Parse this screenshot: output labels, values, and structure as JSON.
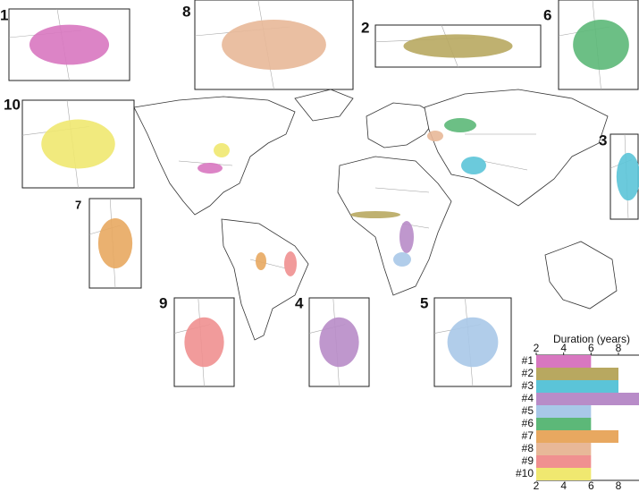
{
  "insets": [
    {
      "label": "1",
      "color": "#d877c0"
    },
    {
      "label": "2",
      "color": "#b8a860"
    },
    {
      "label": "3",
      "color": "#5bc4d8"
    },
    {
      "label": "4",
      "color": "#b88cc8"
    },
    {
      "label": "5",
      "color": "#a8c8e8"
    },
    {
      "label": "6",
      "color": "#5cb878"
    },
    {
      "label": "7",
      "color": "#e8a860"
    },
    {
      "label": "8",
      "color": "#e8b898"
    },
    {
      "label": "9",
      "color": "#f09090"
    },
    {
      "label": "10",
      "color": "#f0e870"
    }
  ],
  "chart_data": {
    "type": "bar",
    "orientation": "horizontal",
    "title": "Duration (years)",
    "categories": [
      "#1",
      "#2",
      "#3",
      "#4",
      "#5",
      "#6",
      "#7",
      "#8",
      "#9",
      "#10"
    ],
    "values": [
      6,
      8,
      8,
      9.5,
      6,
      6,
      8,
      6,
      6,
      6
    ],
    "colors": [
      "#d877c0",
      "#b8a860",
      "#5bc4d8",
      "#b88cc8",
      "#a8c8e8",
      "#5cb878",
      "#e8a860",
      "#e8b898",
      "#f09090",
      "#f0e870"
    ],
    "xlim": [
      2,
      9.5
    ],
    "xticks": [
      2,
      4,
      6,
      8
    ]
  }
}
